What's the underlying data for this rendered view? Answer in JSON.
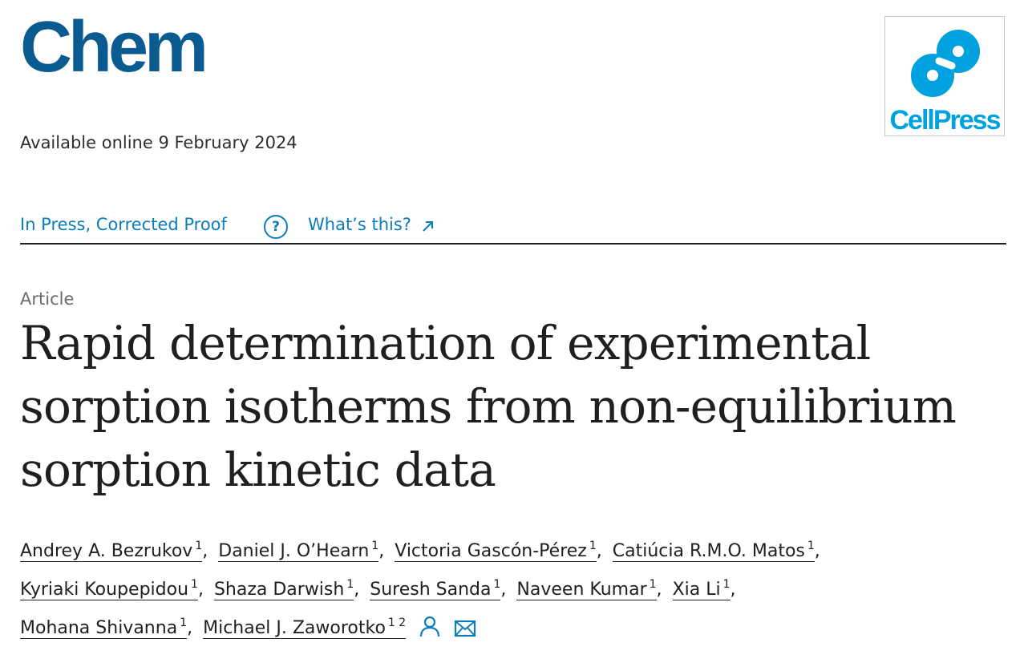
{
  "journal": {
    "name": "Chem"
  },
  "publisher": {
    "name": "CellPress",
    "brand_color": "#00a1df"
  },
  "availability": "Available online 9 February 2024",
  "status": {
    "label": "In Press, Corrected Proof",
    "help_glyph": "?",
    "whats_this": "What’s this?",
    "accent": "#0c7dbb"
  },
  "article": {
    "type": "Article",
    "title_lines": [
      "Rapid determination of experimental",
      "sorption isotherms from non-equilibrium",
      "sorption kinetic data"
    ]
  },
  "authors": [
    {
      "name": "Andrey A. Bezrukov",
      "aff": "1"
    },
    {
      "name": "Daniel J. O’Hearn",
      "aff": "1"
    },
    {
      "name": "Victoria Gascón-Pérez",
      "aff": "1"
    },
    {
      "name": "Catiúcia R.M.O. Matos",
      "aff": "1"
    },
    {
      "name": "Kyriaki Koupepidou",
      "aff": "1"
    },
    {
      "name": "Shaza Darwish",
      "aff": "1"
    },
    {
      "name": "Suresh Sanda",
      "aff": "1"
    },
    {
      "name": "Naveen Kumar",
      "aff": "1"
    },
    {
      "name": "Xia Li",
      "aff": "1"
    },
    {
      "name": "Mohana Shivanna",
      "aff": "1"
    },
    {
      "name": "Michael J. Zaworotko",
      "aff": "1 2"
    }
  ],
  "author_separator": ",",
  "icons": {
    "corresponding_author": "person-icon",
    "email": "envelope-icon"
  }
}
